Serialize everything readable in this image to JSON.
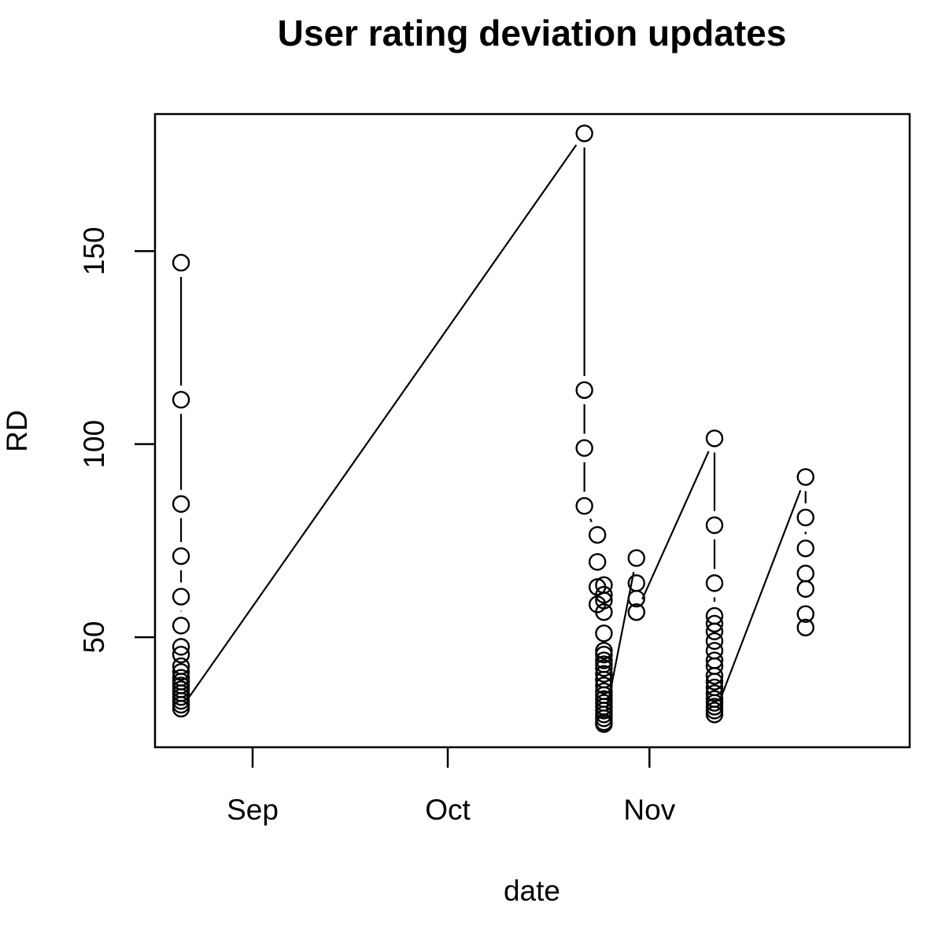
{
  "chart_data": {
    "type": "scatter",
    "title": "User rating deviation updates",
    "xlabel": "date",
    "ylabel": "RD",
    "x_tick_labels": [
      "Sep",
      "Oct",
      "Nov"
    ],
    "x_tick_dates": [
      "2015-09-01",
      "2015-10-01",
      "2015-11-01"
    ],
    "xlim": [
      "2015-08-17",
      "2015-12-11"
    ],
    "y_ticks": [
      50,
      100,
      150
    ],
    "ylim": [
      21.5,
      185.5
    ],
    "grid": false,
    "legend": "none",
    "line_style": "type b (points joined by lines with gaps)",
    "series": [
      {
        "values": [
          [
            "2015-08-21",
            147
          ],
          [
            "2015-08-21",
            111.5
          ],
          [
            "2015-08-21",
            84.5
          ],
          [
            "2015-08-21",
            71
          ],
          [
            "2015-08-21",
            60.5
          ],
          [
            "2015-08-21",
            53
          ],
          [
            "2015-08-21",
            47.5
          ],
          [
            "2015-08-21",
            45.5
          ],
          [
            "2015-08-21",
            42.5
          ],
          [
            "2015-08-21",
            41
          ],
          [
            "2015-08-21",
            39.5
          ],
          [
            "2015-08-21",
            38.5
          ],
          [
            "2015-08-21",
            37.5
          ],
          [
            "2015-08-21",
            36.5
          ],
          [
            "2015-08-21",
            35.5
          ],
          [
            "2015-08-21",
            34.5
          ],
          [
            "2015-08-21",
            33.5
          ],
          [
            "2015-08-21",
            32.5
          ],
          [
            "2015-08-21",
            31.5
          ],
          [
            "2015-10-22",
            180.5
          ],
          [
            "2015-10-22",
            114
          ],
          [
            "2015-10-22",
            99
          ],
          [
            "2015-10-22",
            84
          ],
          [
            "2015-10-24",
            76.5
          ],
          [
            "2015-10-24",
            69.5
          ],
          [
            "2015-10-24",
            63
          ],
          [
            "2015-10-24",
            58.5
          ],
          [
            "2015-10-25",
            63.5
          ],
          [
            "2015-10-25",
            61
          ],
          [
            "2015-10-25",
            59.5
          ],
          [
            "2015-10-25",
            56.5
          ],
          [
            "2015-10-25",
            51
          ],
          [
            "2015-10-25",
            46.5
          ],
          [
            "2015-10-25",
            45.5
          ],
          [
            "2015-10-25",
            44
          ],
          [
            "2015-10-25",
            43
          ],
          [
            "2015-10-25",
            42
          ],
          [
            "2015-10-25",
            40.5
          ],
          [
            "2015-10-25",
            39
          ],
          [
            "2015-10-25",
            37.5
          ],
          [
            "2015-10-25",
            36
          ],
          [
            "2015-10-25",
            35
          ],
          [
            "2015-10-25",
            34
          ],
          [
            "2015-10-25",
            33
          ],
          [
            "2015-10-25",
            32
          ],
          [
            "2015-10-25",
            31
          ],
          [
            "2015-10-25",
            30
          ],
          [
            "2015-10-25",
            29
          ],
          [
            "2015-10-25",
            28
          ],
          [
            "2015-10-25",
            27.5
          ],
          [
            "2015-10-30",
            70.5
          ],
          [
            "2015-10-30",
            64
          ],
          [
            "2015-10-30",
            60
          ],
          [
            "2015-10-30",
            56.5
          ],
          [
            "2015-11-11",
            101.5
          ],
          [
            "2015-11-11",
            79
          ],
          [
            "2015-11-11",
            64
          ],
          [
            "2015-11-11",
            55.5
          ],
          [
            "2015-11-11",
            53.5
          ],
          [
            "2015-11-11",
            51.5
          ],
          [
            "2015-11-11",
            49
          ],
          [
            "2015-11-11",
            46.5
          ],
          [
            "2015-11-11",
            44
          ],
          [
            "2015-11-11",
            42.5
          ],
          [
            "2015-11-11",
            40
          ],
          [
            "2015-11-11",
            38.5
          ],
          [
            "2015-11-11",
            37
          ],
          [
            "2015-11-11",
            35.5
          ],
          [
            "2015-11-11",
            34
          ],
          [
            "2015-11-11",
            33
          ],
          [
            "2015-11-11",
            32
          ],
          [
            "2015-11-11",
            31
          ],
          [
            "2015-11-11",
            30
          ],
          [
            "2015-11-25",
            91.5
          ],
          [
            "2015-11-25",
            81
          ],
          [
            "2015-11-25",
            73
          ],
          [
            "2015-11-25",
            66.5
          ],
          [
            "2015-11-25",
            62.5
          ],
          [
            "2015-11-25",
            56
          ],
          [
            "2015-11-25",
            52.5
          ]
        ]
      }
    ]
  }
}
